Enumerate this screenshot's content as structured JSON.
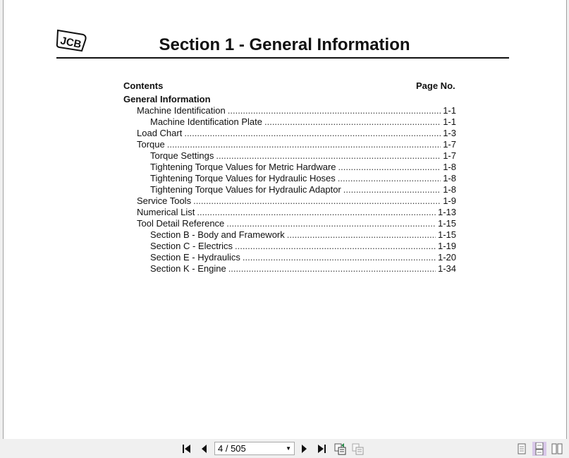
{
  "document": {
    "logo_text": "JCB",
    "title": "Section 1 - General Information",
    "contents_label": "Contents",
    "page_no_label": "Page No.",
    "group_heading": "General Information",
    "entries": [
      {
        "label": "Machine Identification",
        "page": "1-1",
        "level": 1
      },
      {
        "label": "Machine Identification Plate",
        "page": "1-1",
        "level": 2
      },
      {
        "label": "Load Chart",
        "page": "1-3",
        "level": 1
      },
      {
        "label": "Torque",
        "page": "1-7",
        "level": 1
      },
      {
        "label": "Torque Settings",
        "page": "1-7",
        "level": 2
      },
      {
        "label": "Tightening Torque Values for Metric Hardware",
        "page": "1-8",
        "level": 2
      },
      {
        "label": "Tightening Torque Values for Hydraulic Hoses",
        "page": "1-8",
        "level": 2
      },
      {
        "label": "Tightening Torque Values for Hydraulic Adaptor",
        "page": "1-8",
        "level": 2
      },
      {
        "label": "Service Tools",
        "page": "1-9",
        "level": 1
      },
      {
        "label": "Numerical List",
        "page": "1-13",
        "level": 1
      },
      {
        "label": "Tool Detail Reference",
        "page": "1-15",
        "level": 1
      },
      {
        "label": "Section B - Body and Framework",
        "page": "1-15",
        "level": 2
      },
      {
        "label": "Section C - Electrics",
        "page": "1-19",
        "level": 2
      },
      {
        "label": "Section E - Hydraulics",
        "page": "1-20",
        "level": 2
      },
      {
        "label": "Section K - Engine",
        "page": "1-34",
        "level": 2
      }
    ]
  },
  "toolbar": {
    "page_indicator": "4 / 505",
    "icons": [
      "first-page-icon",
      "prev-page-icon",
      "next-page-icon",
      "last-page-icon",
      "goto-previous-view-icon",
      "goto-next-view-icon",
      "single-page-view-icon",
      "continuous-view-icon",
      "two-page-view-icon"
    ],
    "active_view": "continuous",
    "accent_color": "#d9c8ea"
  }
}
